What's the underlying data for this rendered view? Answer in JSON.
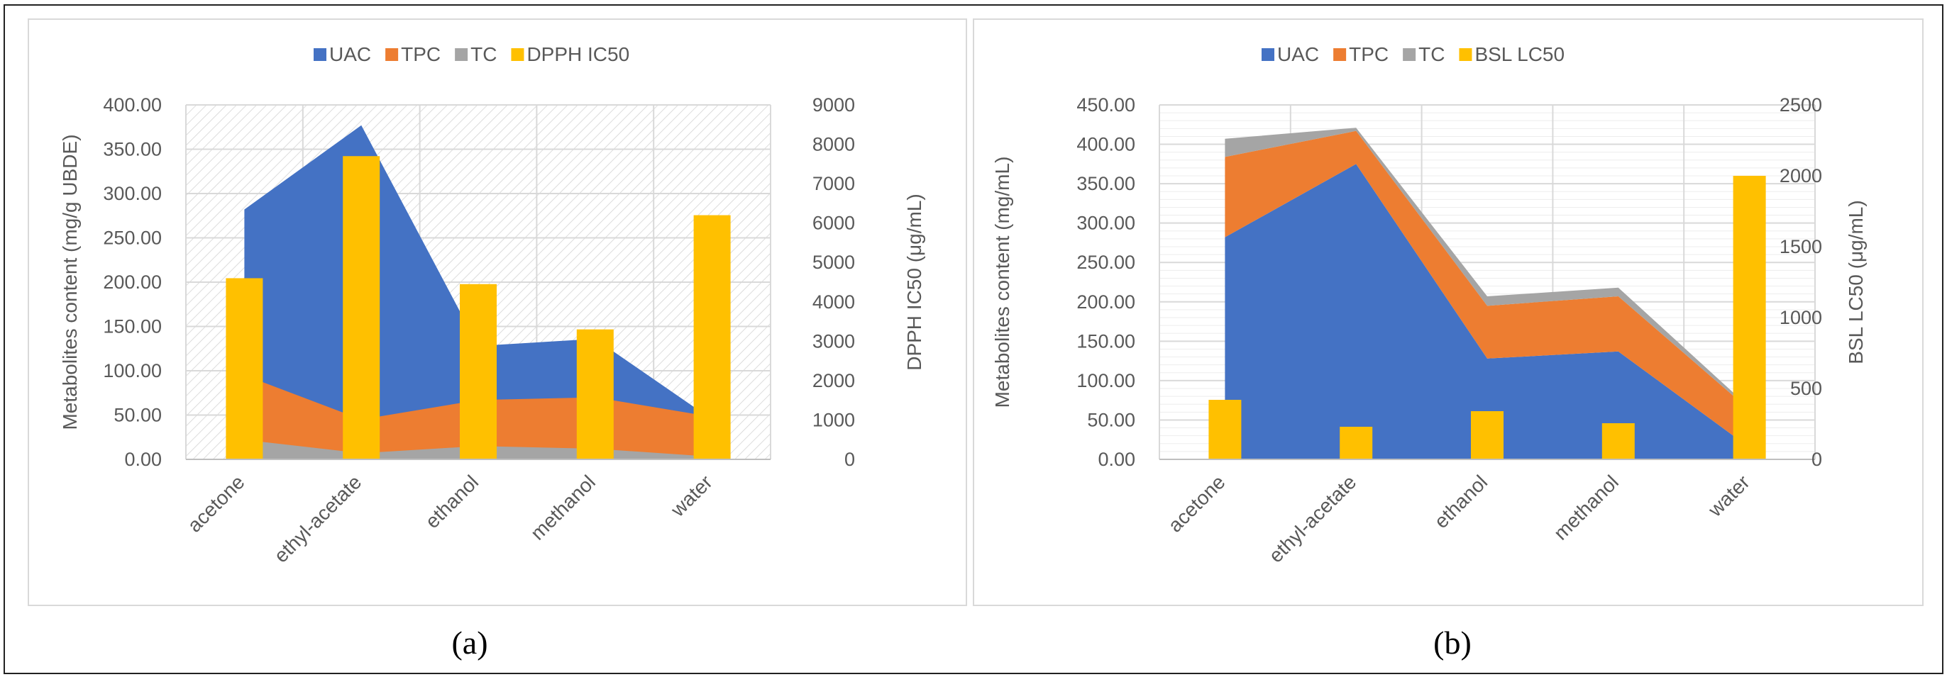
{
  "figure": {
    "caption_a": "(a)",
    "caption_b": "(b)"
  },
  "colors": {
    "uac": "#4472C4",
    "tpc": "#ED7D31",
    "tc": "#A5A5A5",
    "bar": "#FFC000",
    "grid": "#D9D9D9",
    "axis_text": "#595959",
    "panel_border": "#D9D9D9"
  },
  "chart_data": [
    {
      "type": "area",
      "panel": "a",
      "stacked": false,
      "categories": [
        "acetone",
        "ethyl-acetate",
        "ethanol",
        "methanol",
        "water"
      ],
      "legend": [
        "UAC",
        "TPC",
        "TC",
        "DPPH IC50"
      ],
      "ylabel": "Metabolites content (mg/g UBDE)",
      "y2label": "DPPH IC50  (μg/mL)",
      "ylim": [
        0,
        400
      ],
      "y2lim": [
        0,
        9000
      ],
      "yticks": [
        "0.00",
        "50.00",
        "100.00",
        "150.00",
        "200.00",
        "250.00",
        "300.00",
        "350.00",
        "400.00"
      ],
      "y2ticks": [
        "0",
        "1000",
        "2000",
        "3000",
        "4000",
        "5000",
        "6000",
        "7000",
        "8000",
        "9000"
      ],
      "plot_pattern": "hatched",
      "series": [
        {
          "name": "UAC",
          "kind": "area",
          "values": [
            282,
            377,
            128,
            136,
            45
          ]
        },
        {
          "name": "TPC",
          "kind": "area",
          "values": [
            95,
            45,
            67,
            70,
            48
          ]
        },
        {
          "name": "TC",
          "kind": "area",
          "values": [
            22,
            7,
            15,
            12,
            3
          ]
        },
        {
          "name": "DPPH IC50",
          "kind": "bar",
          "axis": "secondary",
          "values": [
            4600,
            7700,
            4450,
            3300,
            6200
          ]
        }
      ]
    },
    {
      "type": "area",
      "panel": "b",
      "stacked": true,
      "categories": [
        "acetone",
        "ethyl-acetate",
        "ethanol",
        "methanol",
        "water"
      ],
      "legend": [
        "UAC",
        "TPC",
        "TC",
        "BSL LC50"
      ],
      "ylabel": "Metabolites content (mg/mL)",
      "y2label": "BSL LC50 (μg/mL)",
      "ylim": [
        0,
        450
      ],
      "y2lim": [
        0,
        2500
      ],
      "yticks": [
        "0.00",
        "50.00",
        "100.00",
        "150.00",
        "200.00",
        "250.00",
        "300.00",
        "350.00",
        "400.00",
        "450.00"
      ],
      "y2ticks": [
        "0",
        "500",
        "1000",
        "1500",
        "2000",
        "2500"
      ],
      "plot_pattern": "grid",
      "series": [
        {
          "name": "UAC",
          "kind": "area",
          "values": [
            282,
            375,
            128,
            137,
            15
          ]
        },
        {
          "name": "TPC",
          "kind": "area",
          "values": [
            102,
            42,
            67,
            70,
            48
          ]
        },
        {
          "name": "TC",
          "kind": "area",
          "values": [
            23,
            4,
            12,
            11,
            3
          ]
        },
        {
          "name": "BSL LC50",
          "kind": "bar",
          "axis": "secondary",
          "values": [
            420,
            230,
            340,
            255,
            2000
          ]
        }
      ]
    }
  ]
}
